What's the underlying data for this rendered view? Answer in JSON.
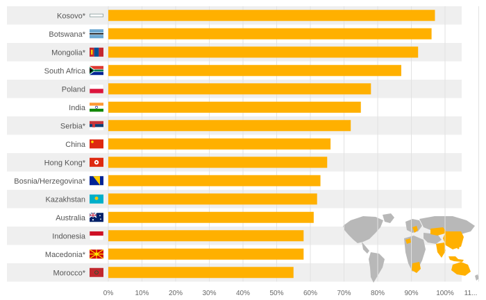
{
  "colors": {
    "bar": "#FFB000",
    "row_band": "#EFEFEF",
    "grid": "#E2E2E2",
    "map_land": "#B8B8B8",
    "map_highlight": "#FFB000"
  },
  "chart_data": {
    "type": "bar",
    "orientation": "horizontal",
    "title": "",
    "xlabel": "",
    "ylabel": "",
    "xlim": [
      0,
      110
    ],
    "x_ticks": [
      "0%",
      "10%",
      "20%",
      "30%",
      "40%",
      "50%",
      "60%",
      "70%",
      "80%",
      "90%",
      "100%",
      "11..."
    ],
    "grid": true,
    "categories": [
      "Kosovo*",
      "Botswana*",
      "Mongolia*",
      "South Africa",
      "Poland",
      "India",
      "Serbia*",
      "China",
      "Hong Kong*",
      "Bosnia/Herzegovina*",
      "Kazakhstan",
      "Australia",
      "Indonesia",
      "Macedonia*",
      "Morocco*"
    ],
    "values": [
      97,
      96,
      92,
      87,
      78,
      75,
      72,
      66,
      65,
      63,
      62,
      61,
      58,
      58,
      55
    ],
    "flags": [
      "kosovo-flag",
      "botswana-flag",
      "mongolia-flag",
      "south-africa-flag",
      "poland-flag",
      "india-flag",
      "serbia-flag",
      "china-flag",
      "hong-kong-flag",
      "bosnia-herzegovina-flag",
      "kazakhstan-flag",
      "australia-flag",
      "indonesia-flag",
      "macedonia-flag",
      "morocco-flag"
    ]
  }
}
